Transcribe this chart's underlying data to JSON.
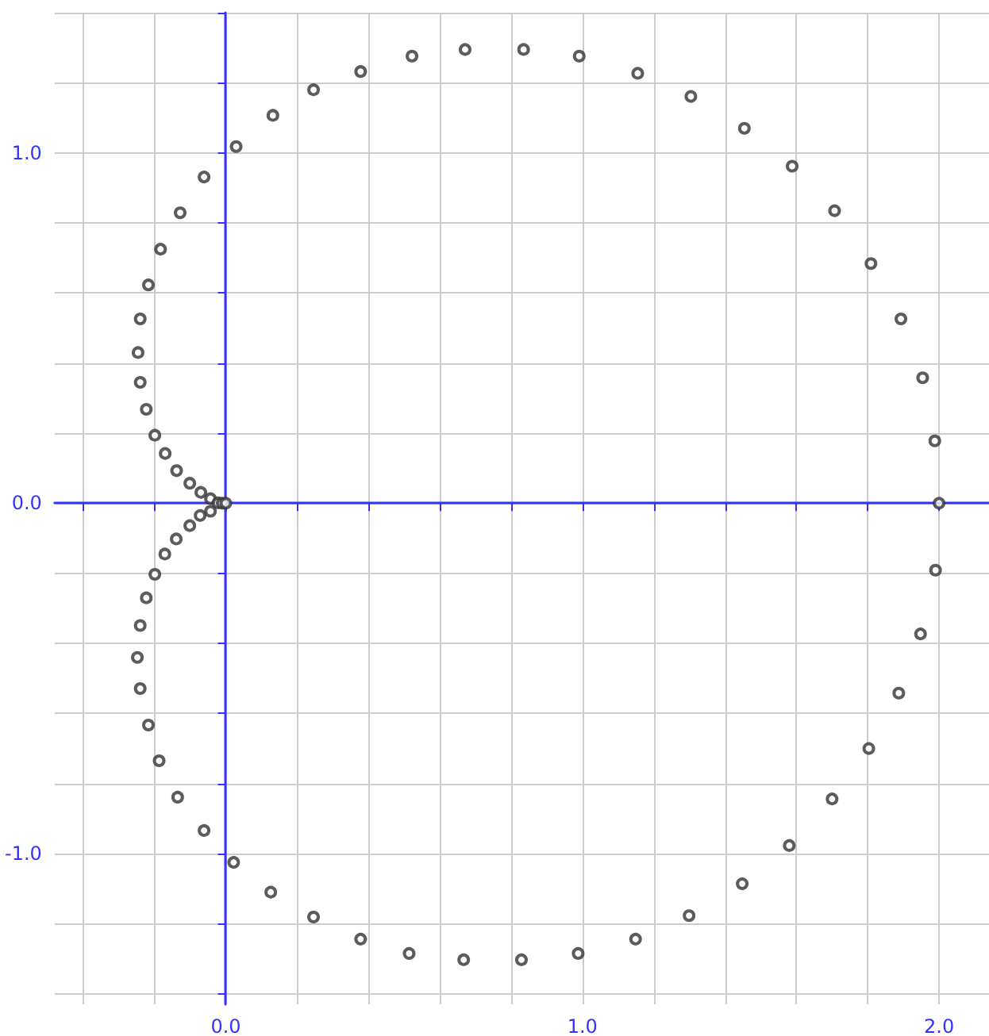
{
  "chart_data": {
    "type": "scatter",
    "marker": "circle",
    "color": "#333333",
    "grid": true,
    "x": [
      2.0,
      1.988,
      1.954,
      1.893,
      1.809,
      1.707,
      1.588,
      1.454,
      1.304,
      1.155,
      0.991,
      0.835,
      0.671,
      0.522,
      0.378,
      0.246,
      0.132,
      0.029,
      -0.061,
      -0.128,
      -0.183,
      -0.217,
      -0.24,
      -0.246,
      -0.24,
      -0.223,
      -0.199,
      -0.17,
      -0.138,
      -0.101,
      -0.07,
      -0.043,
      -0.022,
      -0.01,
      0.0,
      -0.043,
      -0.072,
      -0.101,
      -0.139,
      -0.171,
      -0.199,
      -0.223,
      -0.24,
      -0.248,
      -0.24,
      -0.217,
      -0.187,
      -0.135,
      -0.061,
      0.022,
      0.126,
      0.246,
      0.378,
      0.514,
      0.667,
      0.829,
      0.988,
      1.149,
      1.299,
      1.448,
      1.58,
      1.7,
      1.803,
      1.887,
      1.948,
      1.99
    ],
    "values": [
      0.0,
      0.178,
      0.358,
      0.526,
      0.684,
      0.835,
      0.962,
      1.07,
      1.161,
      1.227,
      1.276,
      1.295,
      1.295,
      1.276,
      1.232,
      1.18,
      1.107,
      1.018,
      0.931,
      0.829,
      0.725,
      0.623,
      0.526,
      0.43,
      0.345,
      0.268,
      0.194,
      0.142,
      0.093,
      0.057,
      0.031,
      0.013,
      0.001,
      0.0,
      0.0,
      -0.023,
      -0.035,
      -0.064,
      -0.102,
      -0.145,
      -0.203,
      -0.27,
      -0.349,
      -0.44,
      -0.529,
      -0.633,
      -0.735,
      -0.839,
      -0.934,
      -1.025,
      -1.11,
      -1.181,
      -1.244,
      -1.285,
      -1.303,
      -1.303,
      -1.285,
      -1.244,
      -1.177,
      -1.086,
      -0.977,
      -0.844,
      -0.7,
      -0.542,
      -0.373,
      -0.191
    ],
    "xlim": [
      -0.48,
      2.14
    ],
    "ylim": [
      -1.43,
      1.4
    ],
    "xticks": [
      {
        "value": -0.4,
        "label": null
      },
      {
        "value": -0.2,
        "label": null
      },
      {
        "value": 0,
        "label": "0.0"
      },
      {
        "value": 0.2,
        "label": null
      },
      {
        "value": 0.4,
        "label": null
      },
      {
        "value": 0.6,
        "label": null
      },
      {
        "value": 0.8,
        "label": null
      },
      {
        "value": 1,
        "label": "1.0"
      },
      {
        "value": 1.2,
        "label": null
      },
      {
        "value": 1.4,
        "label": null
      },
      {
        "value": 1.6,
        "label": null
      },
      {
        "value": 1.8,
        "label": null
      },
      {
        "value": 2,
        "label": "2.0"
      }
    ],
    "yticks": [
      {
        "value": -1.4,
        "label": null
      },
      {
        "value": -1.2,
        "label": null
      },
      {
        "value": -1,
        "label": "-1.0"
      },
      {
        "value": -0.8,
        "label": null
      },
      {
        "value": -0.6,
        "label": null
      },
      {
        "value": -0.4,
        "label": null
      },
      {
        "value": -0.2,
        "label": null
      },
      {
        "value": 0,
        "label": "0.0"
      },
      {
        "value": 0.2,
        "label": null
      },
      {
        "value": 0.4,
        "label": null
      },
      {
        "value": 0.6,
        "label": null
      },
      {
        "value": 0.8,
        "label": null
      },
      {
        "value": 1,
        "label": "1.0"
      },
      {
        "value": 1.2,
        "label": null
      },
      {
        "value": 1.4,
        "label": null
      }
    ]
  }
}
